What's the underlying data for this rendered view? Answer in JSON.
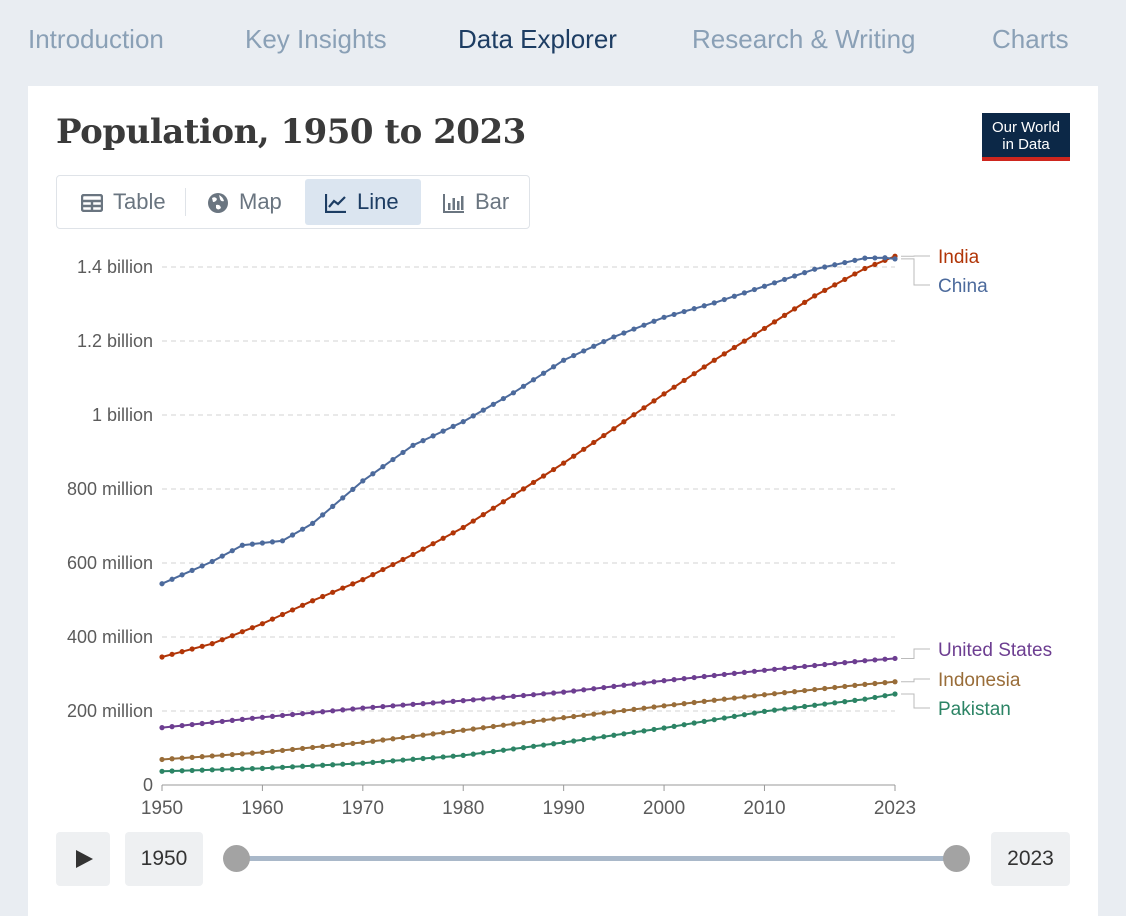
{
  "nav": {
    "tabs": [
      {
        "label": "Introduction",
        "active": false
      },
      {
        "label": "Key Insights",
        "active": false
      },
      {
        "label": "Data Explorer",
        "active": true
      },
      {
        "label": "Research & Writing",
        "active": false
      },
      {
        "label": "Charts",
        "active": false
      }
    ]
  },
  "logo": {
    "line1": "Our World",
    "line2": "in Data"
  },
  "view_tabs": [
    {
      "label": "Table",
      "icon": "table-icon",
      "active": false
    },
    {
      "label": "Map",
      "icon": "globe-icon",
      "active": false
    },
    {
      "label": "Line",
      "icon": "line-chart-icon",
      "active": true
    },
    {
      "label": "Bar",
      "icon": "bar-chart-icon",
      "active": false
    }
  ],
  "timeline": {
    "start": "1950",
    "end": "2023",
    "play_icon": "play-icon"
  },
  "chart_data": {
    "type": "line",
    "title": "Population, 1950 to 2023",
    "xlabel": "",
    "ylabel": "",
    "xlim": [
      1950,
      2023
    ],
    "ylim": [
      0,
      1400000000
    ],
    "x_ticks": [
      "1950",
      "1960",
      "1970",
      "1980",
      "1990",
      "2000",
      "2010",
      "2023"
    ],
    "y_ticks": [
      {
        "value": 0,
        "label": "0"
      },
      {
        "value": 200000000,
        "label": "200 million"
      },
      {
        "value": 400000000,
        "label": "400 million"
      },
      {
        "value": 600000000,
        "label": "600 million"
      },
      {
        "value": 800000000,
        "label": "800 million"
      },
      {
        "value": 1000000000,
        "label": "1 billion"
      },
      {
        "value": 1200000000,
        "label": "1.2 billion"
      },
      {
        "value": 1400000000,
        "label": "1.4 billion"
      }
    ],
    "grid": true,
    "legend": "right",
    "series": [
      {
        "name": "India",
        "color": "#b13507",
        "points": [
          [
            1950,
            346
          ],
          [
            1955,
            382
          ],
          [
            1960,
            436
          ],
          [
            1965,
            498
          ],
          [
            1970,
            555
          ],
          [
            1975,
            623
          ],
          [
            1980,
            696
          ],
          [
            1985,
            783
          ],
          [
            1990,
            870
          ],
          [
            1995,
            963
          ],
          [
            2000,
            1057
          ],
          [
            2005,
            1148
          ],
          [
            2010,
            1234
          ],
          [
            2015,
            1322
          ],
          [
            2020,
            1396
          ],
          [
            2023,
            1429
          ]
        ]
      },
      {
        "name": "China",
        "color": "#4c6a9c",
        "points": [
          [
            1950,
            544
          ],
          [
            1955,
            604
          ],
          [
            1958,
            648
          ],
          [
            1960,
            654
          ],
          [
            1962,
            660
          ],
          [
            1965,
            707
          ],
          [
            1970,
            822
          ],
          [
            1975,
            918
          ],
          [
            1980,
            982
          ],
          [
            1985,
            1060
          ],
          [
            1990,
            1148
          ],
          [
            1995,
            1211
          ],
          [
            2000,
            1264
          ],
          [
            2005,
            1303
          ],
          [
            2010,
            1348
          ],
          [
            2015,
            1394
          ],
          [
            2020,
            1424
          ],
          [
            2022,
            1425
          ],
          [
            2023,
            1422
          ]
        ]
      },
      {
        "name": "United States",
        "color": "#6d3e91",
        "points": [
          [
            1950,
            155
          ],
          [
            1960,
            183
          ],
          [
            1970,
            208
          ],
          [
            1980,
            228
          ],
          [
            1990,
            251
          ],
          [
            2000,
            282
          ],
          [
            2010,
            310
          ],
          [
            2020,
            336
          ],
          [
            2023,
            342
          ]
        ]
      },
      {
        "name": "Indonesia",
        "color": "#996d39",
        "points": [
          [
            1950,
            69
          ],
          [
            1960,
            88
          ],
          [
            1970,
            115
          ],
          [
            1980,
            148
          ],
          [
            1990,
            182
          ],
          [
            2000,
            214
          ],
          [
            2010,
            244
          ],
          [
            2020,
            272
          ],
          [
            2023,
            279
          ]
        ]
      },
      {
        "name": "Pakistan",
        "color": "#2c8465",
        "points": [
          [
            1950,
            37
          ],
          [
            1960,
            45
          ],
          [
            1970,
            59
          ],
          [
            1980,
            80
          ],
          [
            1990,
            115
          ],
          [
            2000,
            154
          ],
          [
            2010,
            199
          ],
          [
            2020,
            232
          ],
          [
            2023,
            246
          ]
        ]
      }
    ],
    "value_unit_note": "points are in millions"
  }
}
